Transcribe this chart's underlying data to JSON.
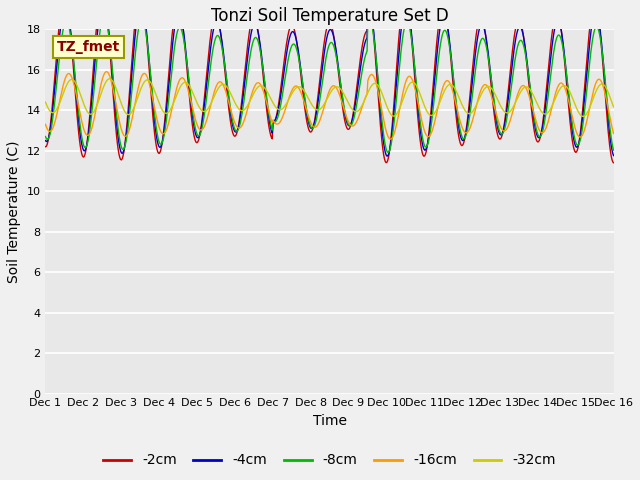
{
  "title": "Tonzi Soil Temperature Set D",
  "xlabel": "Time",
  "ylabel": "Soil Temperature (C)",
  "annotation": "TZ_fmet",
  "ylim": [
    0,
    18
  ],
  "yticks": [
    0,
    2,
    4,
    6,
    8,
    10,
    12,
    14,
    16,
    18
  ],
  "xtick_labels": [
    "Dec 1",
    "Dec 2",
    "Dec 3",
    "Dec 4",
    "Dec 5",
    "Dec 6",
    "Dec 7",
    "Dec 8",
    "Dec 9",
    "Dec 10",
    "Dec 11",
    "Dec 12",
    "Dec 13",
    "Dec 14",
    "Dec 15",
    "Dec 16"
  ],
  "series_colors": [
    "#cc0000",
    "#0000cc",
    "#00bb00",
    "#ff9900",
    "#cccc00"
  ],
  "series_labels": [
    "-2cm",
    "-4cm",
    "-8cm",
    "-16cm",
    "-32cm"
  ],
  "background_color": "#f0f0f0",
  "plot_bg_color": "#e8e8e8",
  "annotation_box_color": "#ffffcc",
  "annotation_text_color": "#880000",
  "title_fontsize": 12,
  "axis_fontsize": 10,
  "tick_fontsize": 8,
  "legend_fontsize": 10,
  "n_days": 15
}
